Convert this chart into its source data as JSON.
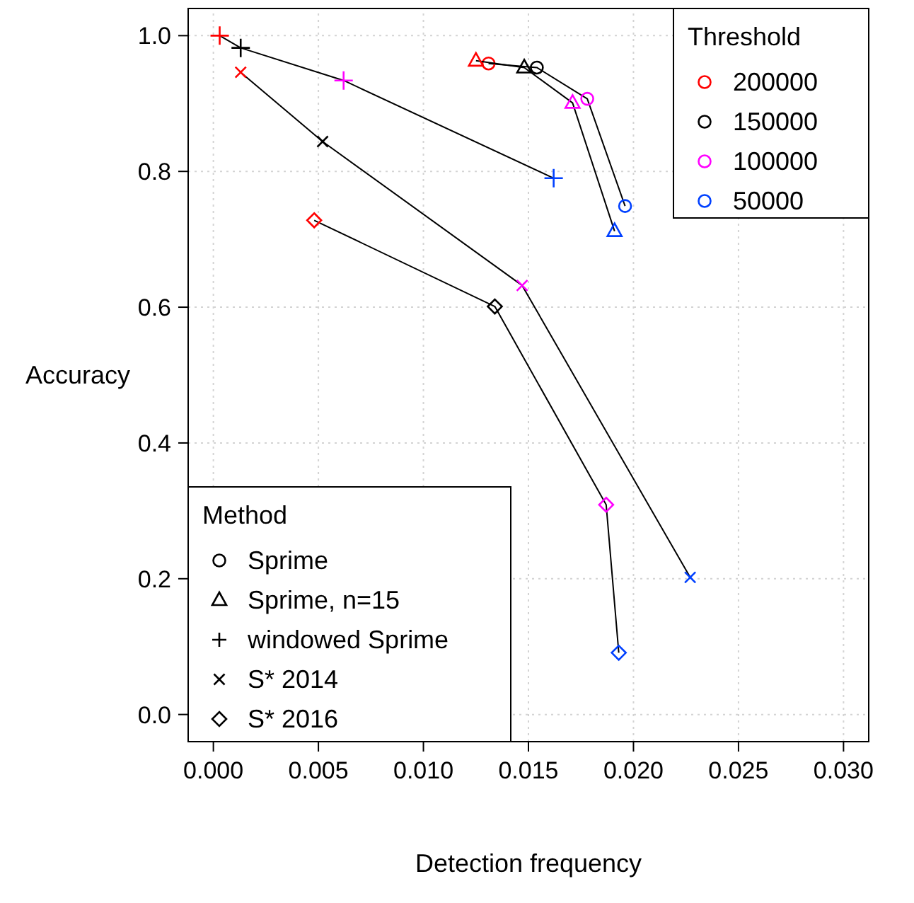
{
  "chart_data": {
    "type": "line",
    "xlabel": "Detection frequency",
    "ylabel": "Accuracy",
    "xlim": [
      -0.0012,
      0.0312
    ],
    "ylim": [
      -0.04,
      1.04
    ],
    "xticks": [
      {
        "value": 0,
        "label": "0.000"
      },
      {
        "value": 0.005,
        "label": "0.005"
      },
      {
        "value": 0.01,
        "label": "0.010"
      },
      {
        "value": 0.015,
        "label": "0.015"
      },
      {
        "value": 0.02,
        "label": "0.020"
      },
      {
        "value": 0.025,
        "label": "0.025"
      },
      {
        "value": 0.03,
        "label": "0.030"
      }
    ],
    "yticks": [
      {
        "value": 0,
        "label": "0.0"
      },
      {
        "value": 0.2,
        "label": "0.2"
      },
      {
        "value": 0.4,
        "label": "0.4"
      },
      {
        "value": 0.6,
        "label": "0.6"
      },
      {
        "value": 0.8,
        "label": "0.8"
      },
      {
        "value": 1,
        "label": "1.0"
      }
    ],
    "grid": true,
    "legend": "bottom left",
    "legend_title": "Method",
    "annotations": [
      "Threshold"
    ],
    "series": [
      {
        "name": "Sprime",
        "marker": "circle",
        "color": "#000000",
        "colors": [
          "#ff0000",
          "#000000",
          "#ff00ff",
          "#0040ff"
        ],
        "x": [
          0.0131,
          0.0154,
          0.0178,
          0.0196
        ],
        "values": [
          0.959,
          0.953,
          0.907,
          0.749
        ]
      },
      {
        "name": "Sprime, n=15",
        "marker": "triangle",
        "color": "#000000",
        "colors": [
          "#ff0000",
          "#000000",
          "#ff00ff",
          "#0040ff"
        ],
        "x": [
          0.0125,
          0.0148,
          0.0171,
          0.0191
        ],
        "values": [
          0.963,
          0.953,
          0.901,
          0.712
        ]
      },
      {
        "name": "windowed Sprime",
        "marker": "plus",
        "color": "#000000",
        "colors": [
          "#ff0000",
          "#000000",
          "#ff00ff",
          "#0040ff"
        ],
        "x": [
          0.0003,
          0.0013,
          0.0062,
          0.0162
        ],
        "values": [
          1.0,
          0.982,
          0.934,
          0.79
        ]
      },
      {
        "name": "S* 2014",
        "marker": "cross",
        "color": "#000000",
        "colors": [
          "#ff0000",
          "#000000",
          "#ff00ff",
          "#0040ff"
        ],
        "x": [
          0.0013,
          0.0052,
          0.0147,
          0.0227
        ],
        "values": [
          0.946,
          0.844,
          0.632,
          0.202
        ]
      },
      {
        "name": "S* 2016",
        "marker": "diamond",
        "color": "#000000",
        "colors": [
          "#ff0000",
          "#000000",
          "#ff00ff",
          "#0040ff"
        ],
        "x": [
          0.0048,
          0.0134,
          0.0187,
          0.0193
        ],
        "values": [
          0.728,
          0.601,
          0.309,
          0.091
        ]
      },
      {
        "name": "200000",
        "type": "scatter",
        "marker": "circle",
        "color": "#ff0000"
      },
      {
        "name": "150000",
        "type": "scatter",
        "marker": "circle",
        "color": "#000000"
      },
      {
        "name": "100000",
        "type": "scatter",
        "marker": "circle",
        "color": "#ff00ff"
      },
      {
        "name": "50000",
        "type": "scatter",
        "marker": "circle",
        "color": "#0040ff"
      }
    ]
  }
}
